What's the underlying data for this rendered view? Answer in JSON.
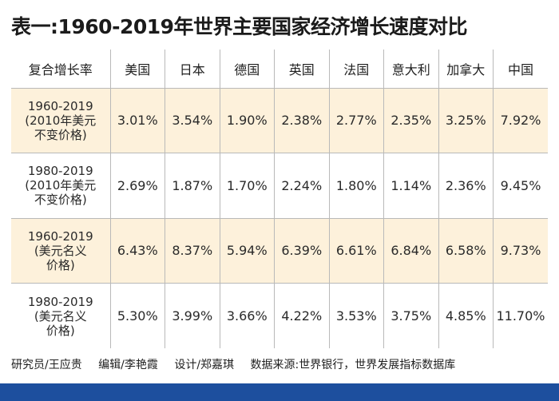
{
  "title": "表一:1960-2019年世界主要国家经济增长速度对比",
  "table": {
    "header": [
      "复合增长率",
      "美国",
      "日本",
      "德国",
      "英国",
      "法国",
      "意大利",
      "加拿大",
      "中国"
    ],
    "rows": [
      {
        "label_lines": [
          "1960-2019",
          "(2010年美元",
          "不变价格)"
        ],
        "values": [
          "3.01%",
          "3.54%",
          "1.90%",
          "2.38%",
          "2.77%",
          "2.35%",
          "3.25%",
          "7.92%"
        ]
      },
      {
        "label_lines": [
          "1980-2019",
          "(2010年美元",
          "不变价格)"
        ],
        "values": [
          "2.69%",
          "1.87%",
          "1.70%",
          "2.24%",
          "1.80%",
          "1.14%",
          "2.36%",
          "9.45%"
        ]
      },
      {
        "label_lines": [
          "1960-2019",
          "(美元名义",
          "价格)"
        ],
        "values": [
          "6.43%",
          "8.37%",
          "5.94%",
          "6.39%",
          "6.61%",
          "6.84%",
          "6.58%",
          "9.73%"
        ]
      },
      {
        "label_lines": [
          "1980-2019",
          "(美元名义",
          "价格)"
        ],
        "values": [
          "5.30%",
          "3.99%",
          "3.66%",
          "4.22%",
          "3.53%",
          "3.75%",
          "4.85%",
          "11.70%"
        ]
      }
    ]
  },
  "footer": {
    "researcher": "研究员/王应贵",
    "editor": "编辑/李艳霞",
    "design": "设计/郑嘉琪",
    "source": "数据来源:世界银行，世界发展指标数据库"
  },
  "colors": {
    "row_shade": "#fdf1db",
    "bottom_bar": "#1d4f9e",
    "grid": "#b9b9b9"
  }
}
